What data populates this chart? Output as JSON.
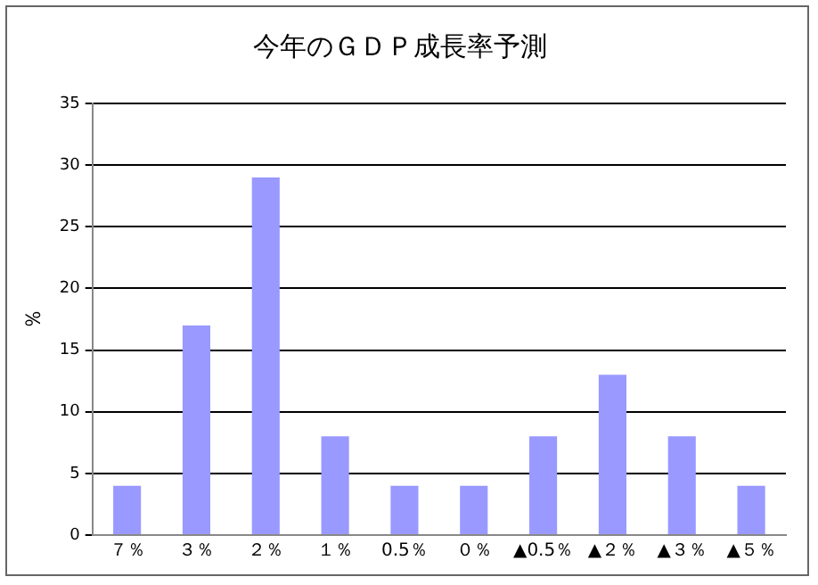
{
  "chart_data": {
    "type": "bar",
    "title": "今年のＧＤＰ成長率予測",
    "ylabel": "％",
    "categories": [
      "７％",
      "３％",
      "２％",
      "１％",
      "0.5％",
      "０％",
      "▲0.5％",
      "▲２％",
      "▲３％",
      "▲５％"
    ],
    "values": [
      4,
      17,
      29,
      8,
      4,
      4,
      8,
      13,
      8,
      4
    ],
    "color": "#9999ff",
    "ylim": [
      0,
      35
    ],
    "yticks": [
      0,
      5,
      10,
      15,
      20,
      25,
      30,
      35
    ],
    "grid": "y"
  }
}
